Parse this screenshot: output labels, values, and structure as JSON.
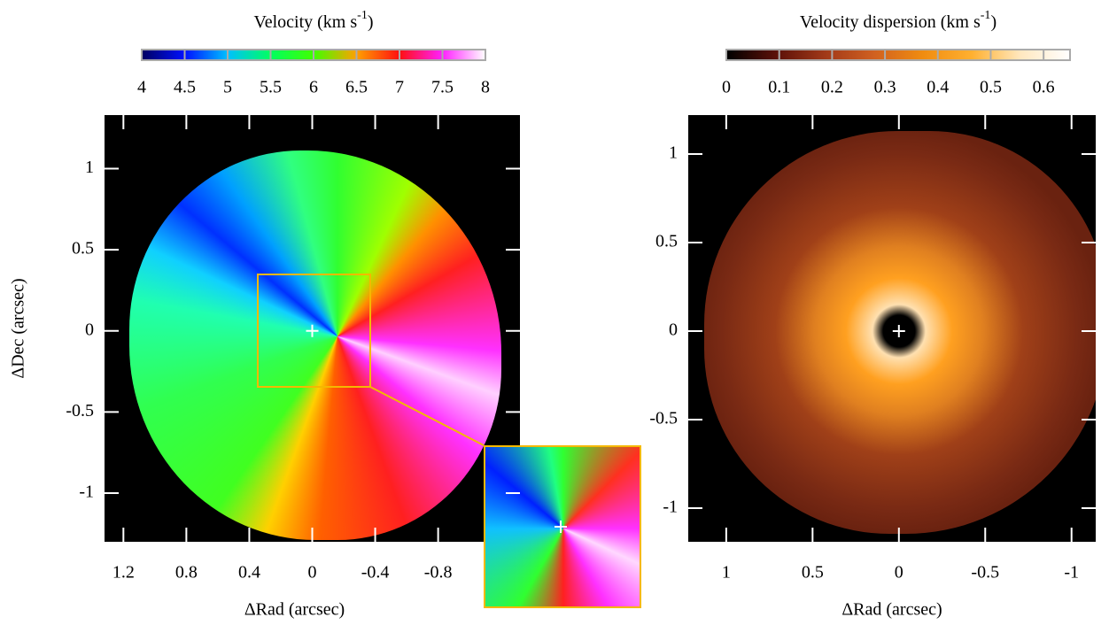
{
  "chart_data": [
    {
      "type": "image",
      "colorbar": {
        "label": "Velocity  (km s",
        "label_sup": "-1",
        "label_end": ")",
        "lim": [
          4,
          8
        ],
        "ticks": [
          4,
          4.5,
          5,
          5.5,
          6,
          6.5,
          7,
          7.5,
          8
        ],
        "colormap": [
          "#000060",
          "#0010ff",
          "#00c0ff",
          "#00ff60",
          "#40ff00",
          "#ffa000",
          "#ff1010",
          "#ff20ff",
          "#ffffff"
        ]
      },
      "xlabel": "ΔRad (arcsec)",
      "ylabel": "ΔDec (arcsec)",
      "xlim": [
        1.32,
        -1.32
      ],
      "ylim": [
        -1.3,
        1.33
      ],
      "xticks": [
        1.2,
        0.8,
        0.4,
        0,
        -0.4,
        -0.8
      ],
      "yticks": [
        -1,
        -0.5,
        0,
        0.5,
        1
      ]
    },
    {
      "type": "image",
      "colorbar": {
        "label": "Velocity dispersion (km s",
        "label_sup": "-1",
        "label_end": ")",
        "lim": [
          0,
          0.65
        ],
        "ticks": [
          0,
          0.1,
          0.2,
          0.3,
          0.4,
          0.5,
          0.6
        ],
        "colormap": [
          "#000000",
          "#5a1008",
          "#a03818",
          "#d06020",
          "#f08c10",
          "#ffb030",
          "#ffe8c0",
          "#ffffff"
        ]
      },
      "xlabel": "ΔRad (arcsec)",
      "xlim": [
        1.22,
        -1.14
      ],
      "ylim": [
        -1.19,
        1.22
      ],
      "xticks": [
        1,
        0.5,
        0,
        -0.5,
        -1
      ],
      "yticks": [
        -1,
        -0.5,
        0,
        0.5,
        1
      ]
    }
  ]
}
